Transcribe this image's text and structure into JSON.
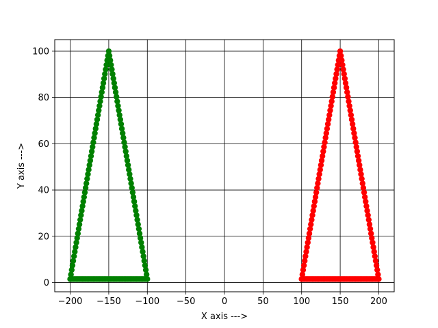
{
  "chart_data": {
    "type": "scatter",
    "title": "",
    "xlabel": "X axis --->",
    "ylabel": "Y axis --->",
    "xlim": [
      -220,
      220
    ],
    "ylim": [
      -4,
      105
    ],
    "xticks": [
      -200,
      -150,
      -100,
      -50,
      0,
      50,
      100,
      150,
      200
    ],
    "yticks": [
      0,
      20,
      40,
      60,
      80,
      100
    ],
    "xtick_labels": [
      "−200",
      "−150",
      "−100",
      "−50",
      "0",
      "50",
      "100",
      "150",
      "200"
    ],
    "ytick_labels": [
      "0",
      "20",
      "40",
      "60",
      "80",
      "100"
    ],
    "grid": true,
    "grid_color": "#000000",
    "series": [
      {
        "color": "#008000",
        "marker": "circle",
        "connected": true,
        "vertices": [
          [
            -200,
            1.5
          ],
          [
            -150,
            100
          ],
          [
            -100,
            1.5
          ]
        ],
        "closed": true
      },
      {
        "color": "#ff0000",
        "marker": "circle",
        "connected": true,
        "vertices": [
          [
            100,
            1.5
          ],
          [
            150,
            100
          ],
          [
            200,
            1.5
          ]
        ],
        "closed": true
      }
    ]
  }
}
